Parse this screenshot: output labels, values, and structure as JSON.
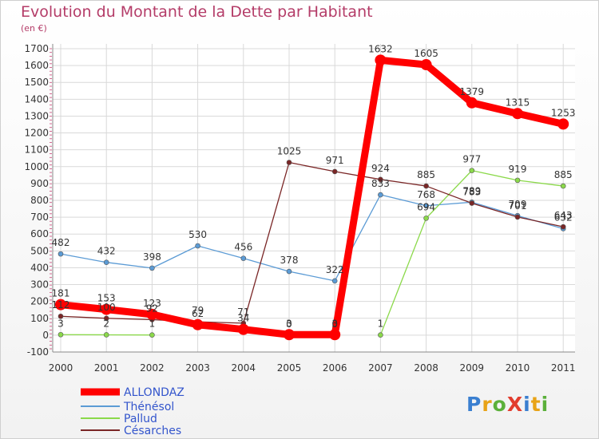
{
  "chart_data": {
    "type": "line",
    "title": "Evolution du Montant de la Dette par Habitant",
    "subtitle": "(en €)",
    "x": [
      "2000",
      "2001",
      "2002",
      "2003",
      "2004",
      "2005",
      "2006",
      "2007",
      "2008",
      "2009",
      "2010",
      "2011"
    ],
    "ylim": [
      -100,
      1700
    ],
    "yticks": [
      -100,
      0,
      100,
      200,
      300,
      400,
      500,
      600,
      700,
      800,
      900,
      1000,
      1100,
      1200,
      1300,
      1400,
      1500,
      1600,
      1700
    ],
    "grid": true,
    "legend_position": "bottom-left",
    "series": [
      {
        "name": "ALLONDAZ",
        "color": "#ff0000",
        "values": [
          181,
          153,
          123,
          62,
          34,
          3,
          3,
          1632,
          1605,
          1379,
          1315,
          1253
        ]
      },
      {
        "name": "Thénésol",
        "color": "#5b9bd5",
        "values": [
          482,
          432,
          398,
          530,
          456,
          378,
          322,
          833,
          768,
          789,
          709,
          632
        ]
      },
      {
        "name": "Pallud",
        "color": "#8bd94a",
        "values": [
          3,
          2,
          1,
          null,
          null,
          null,
          null,
          1,
          694,
          977,
          919,
          885
        ]
      },
      {
        "name": "Césarches",
        "color": "#7a2626",
        "values": [
          112,
          100,
          92,
          79,
          71,
          1025,
          971,
          924,
          885,
          783,
          701,
          643
        ]
      }
    ],
    "data_labels": [
      {
        "text": "181",
        "x": 0,
        "y": 181
      },
      {
        "text": "153",
        "x": 1,
        "y": 153
      },
      {
        "text": "123",
        "x": 2,
        "y": 123
      },
      {
        "text": "62",
        "x": 3,
        "y": 62
      },
      {
        "text": "34",
        "x": 4,
        "y": 34
      },
      {
        "text": "3",
        "x": 5,
        "y": 3
      },
      {
        "text": "3",
        "x": 6,
        "y": 3
      },
      {
        "text": "1632",
        "x": 7,
        "y": 1632
      },
      {
        "text": "1605",
        "x": 8,
        "y": 1605
      },
      {
        "text": "1379",
        "x": 9,
        "y": 1379
      },
      {
        "text": "1315",
        "x": 10,
        "y": 1315
      },
      {
        "text": "1253",
        "x": 11,
        "y": 1253
      },
      {
        "text": "482",
        "x": 0,
        "y": 482
      },
      {
        "text": "432",
        "x": 1,
        "y": 432
      },
      {
        "text": "398",
        "x": 2,
        "y": 398
      },
      {
        "text": "530",
        "x": 3,
        "y": 530
      },
      {
        "text": "456",
        "x": 4,
        "y": 456
      },
      {
        "text": "378",
        "x": 5,
        "y": 378
      },
      {
        "text": "322",
        "x": 6,
        "y": 322
      },
      {
        "text": "833",
        "x": 7,
        "y": 833
      },
      {
        "text": "768",
        "x": 8,
        "y": 768
      },
      {
        "text": "789",
        "x": 9,
        "y": 789
      },
      {
        "text": "709",
        "x": 10,
        "y": 709
      },
      {
        "text": "632",
        "x": 11,
        "y": 632
      },
      {
        "text": "3",
        "x": 0,
        "y": 3
      },
      {
        "text": "2",
        "x": 1,
        "y": 2
      },
      {
        "text": "1",
        "x": 2,
        "y": 1
      },
      {
        "text": "1",
        "x": 7,
        "y": 1
      },
      {
        "text": "694",
        "x": 8,
        "y": 694
      },
      {
        "text": "977",
        "x": 9,
        "y": 977
      },
      {
        "text": "919",
        "x": 10,
        "y": 919
      },
      {
        "text": "885",
        "x": 11,
        "y": 885
      },
      {
        "text": "112",
        "x": 0,
        "y": 112
      },
      {
        "text": "100",
        "x": 1,
        "y": 100
      },
      {
        "text": "92",
        "x": 2,
        "y": 92
      },
      {
        "text": "79",
        "x": 3,
        "y": 79
      },
      {
        "text": "71",
        "x": 4,
        "y": 71
      },
      {
        "text": "1025",
        "x": 5,
        "y": 1025
      },
      {
        "text": "971",
        "x": 6,
        "y": 971
      },
      {
        "text": "924",
        "x": 7,
        "y": 924
      },
      {
        "text": "885",
        "x": 8,
        "y": 885
      },
      {
        "text": "783",
        "x": 9,
        "y": 783
      },
      {
        "text": "701",
        "x": 10,
        "y": 701
      },
      {
        "text": "643",
        "x": 11,
        "y": 643
      },
      {
        "text": "0",
        "x": 5,
        "y": 0
      },
      {
        "text": "0",
        "x": 6,
        "y": 0
      }
    ]
  },
  "brand": {
    "logo_text": "ProXiti"
  }
}
